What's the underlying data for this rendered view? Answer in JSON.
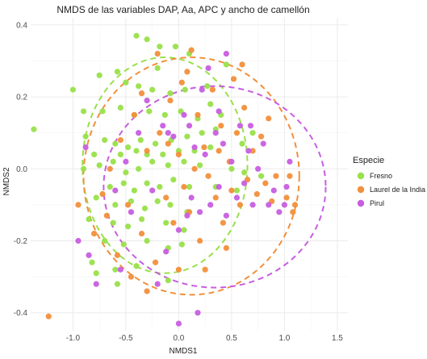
{
  "chart_data": {
    "type": "scatter",
    "title": "NMDS de las variables DAP, Aa, APC y ancho de camellón",
    "xlabel": "NMDS1",
    "ylabel": "NMDS2",
    "xlim": [
      -1.4,
      1.6
    ],
    "ylim": [
      -0.45,
      0.42
    ],
    "x_ticks": [
      -1.0,
      -0.5,
      0.0,
      0.5,
      1.0,
      1.5
    ],
    "x_tick_labels": [
      "-1.0",
      "-0.5",
      "0.0",
      "0.5",
      "1.0",
      "1.5"
    ],
    "y_ticks": [
      -0.4,
      -0.2,
      0.0,
      0.2,
      0.4
    ],
    "y_tick_labels": [
      "-0.4",
      "-0.2",
      "0.0",
      "0.2",
      "0.4"
    ],
    "grid": true,
    "legend": {
      "title": "Especie",
      "position": "right"
    },
    "series": [
      {
        "name": "Fresno",
        "color": "#99e04a",
        "ellipse": {
          "cx": -0.13,
          "cy": 0.01,
          "rx": 0.78,
          "ry": 0.3
        },
        "points": [
          [
            -1.37,
            0.11
          ],
          [
            -1.0,
            0.22
          ],
          [
            -0.75,
            0.26
          ],
          [
            -0.58,
            0.27
          ],
          [
            -0.4,
            0.37
          ],
          [
            -0.3,
            0.36
          ],
          [
            -0.18,
            0.34
          ],
          [
            -0.03,
            0.34
          ],
          [
            0.1,
            0.32
          ],
          [
            0.45,
            0.29
          ],
          [
            -0.5,
            0.24
          ],
          [
            -0.38,
            0.23
          ],
          [
            -0.25,
            0.22
          ],
          [
            -0.08,
            0.21
          ],
          [
            0.06,
            0.22
          ],
          [
            0.27,
            0.23
          ],
          [
            -0.72,
            0.16
          ],
          [
            -0.55,
            0.17
          ],
          [
            -0.42,
            0.15
          ],
          [
            -0.28,
            0.16
          ],
          [
            -0.13,
            0.15
          ],
          [
            0.02,
            0.16
          ],
          [
            0.18,
            0.14
          ],
          [
            0.4,
            0.15
          ],
          [
            -0.88,
            0.09
          ],
          [
            -0.7,
            0.08
          ],
          [
            -0.6,
            0.07
          ],
          [
            -0.48,
            0.06
          ],
          [
            -0.36,
            0.08
          ],
          [
            -0.22,
            0.07
          ],
          [
            -0.07,
            0.08
          ],
          [
            0.08,
            0.09
          ],
          [
            0.22,
            0.1
          ],
          [
            0.35,
            0.11
          ],
          [
            -0.8,
            0.04
          ],
          [
            -0.55,
            0.04
          ],
          [
            -0.4,
            0.05
          ],
          [
            -0.3,
            0.04
          ],
          [
            -0.15,
            0.04
          ],
          [
            0.0,
            0.05
          ],
          [
            0.15,
            0.05
          ],
          [
            0.3,
            0.06
          ],
          [
            -0.9,
            0.0
          ],
          [
            -0.75,
            0.01
          ],
          [
            -0.62,
            0.02
          ],
          [
            -0.5,
            -0.01
          ],
          [
            -0.38,
            0.0
          ],
          [
            -0.25,
            0.02
          ],
          [
            -0.1,
            0.01
          ],
          [
            0.05,
            0.02
          ],
          [
            0.2,
            0.01
          ],
          [
            0.5,
            0.0
          ],
          [
            0.62,
            -0.01
          ],
          [
            0.78,
            -0.02
          ],
          [
            -0.65,
            -0.05
          ],
          [
            -0.52,
            -0.04
          ],
          [
            -0.42,
            -0.06
          ],
          [
            -0.3,
            -0.04
          ],
          [
            -0.18,
            -0.05
          ],
          [
            -0.05,
            -0.03
          ],
          [
            0.1,
            -0.05
          ],
          [
            0.35,
            -0.05
          ],
          [
            -0.78,
            -0.08
          ],
          [
            -0.6,
            -0.1
          ],
          [
            -0.45,
            -0.09
          ],
          [
            -0.32,
            -0.11
          ],
          [
            -0.2,
            -0.09
          ],
          [
            -0.08,
            -0.1
          ],
          [
            0.08,
            -0.12
          ],
          [
            -0.85,
            -0.14
          ],
          [
            -0.62,
            -0.15
          ],
          [
            -0.48,
            -0.16
          ],
          [
            -0.35,
            -0.14
          ],
          [
            -0.12,
            -0.15
          ],
          [
            0.05,
            -0.17
          ],
          [
            -0.7,
            -0.2
          ],
          [
            -0.52,
            -0.21
          ],
          [
            -0.3,
            -0.2
          ],
          [
            -0.1,
            -0.22
          ],
          [
            0.03,
            -0.21
          ],
          [
            -0.82,
            -0.26
          ],
          [
            -0.6,
            -0.28
          ],
          [
            -0.4,
            -0.27
          ],
          [
            -0.78,
            -0.29
          ],
          [
            -0.58,
            -0.32
          ],
          [
            -0.1,
            -0.31
          ],
          [
            0.6,
            0.07
          ],
          [
            0.7,
            0.1
          ],
          [
            0.55,
            -0.06
          ],
          [
            -0.9,
            0.16
          ],
          [
            -0.2,
            0.28
          ],
          [
            0.3,
            0.18
          ]
        ]
      },
      {
        "name": "Laurel de la India",
        "color": "#f28f3b",
        "ellipse": {
          "cx": 0.12,
          "cy": -0.02,
          "rx": 1.02,
          "ry": 0.33
        },
        "points": [
          [
            -1.23,
            -0.41
          ],
          [
            -0.95,
            -0.1
          ],
          [
            -0.8,
            -0.18
          ],
          [
            -0.72,
            -0.07
          ],
          [
            -0.65,
            0.0
          ],
          [
            -0.55,
            0.08
          ],
          [
            -0.48,
            -0.1
          ],
          [
            -0.42,
            0.15
          ],
          [
            -0.35,
            -0.18
          ],
          [
            -0.3,
            0.05
          ],
          [
            -0.22,
            -0.26
          ],
          [
            -0.18,
            0.1
          ],
          [
            -0.12,
            -0.08
          ],
          [
            -0.08,
            0.19
          ],
          [
            -0.05,
            -0.15
          ],
          [
            0.0,
            0.04
          ],
          [
            0.03,
            0.24
          ],
          [
            0.05,
            -0.05
          ],
          [
            0.08,
            0.27
          ],
          [
            0.1,
            -0.12
          ],
          [
            0.15,
            0.0
          ],
          [
            0.18,
            0.15
          ],
          [
            0.2,
            -0.2
          ],
          [
            0.24,
            0.06
          ],
          [
            0.28,
            -0.02
          ],
          [
            0.32,
            0.22
          ],
          [
            0.35,
            -0.08
          ],
          [
            0.4,
            0.12
          ],
          [
            0.42,
            -0.15
          ],
          [
            0.48,
            0.02
          ],
          [
            0.5,
            -0.06
          ],
          [
            0.52,
            0.25
          ],
          [
            0.55,
            0.1
          ],
          [
            0.58,
            -0.1
          ],
          [
            0.62,
            0.17
          ],
          [
            0.65,
            -0.03
          ],
          [
            0.7,
            0.05
          ],
          [
            0.74,
            -0.07
          ],
          [
            0.78,
            0.09
          ],
          [
            0.82,
            -0.04
          ],
          [
            0.88,
            -0.09
          ],
          [
            0.92,
            -0.02
          ],
          [
            1.02,
            -0.08
          ],
          [
            1.05,
            -0.02
          ],
          [
            1.08,
            -0.12
          ],
          [
            -0.45,
            -0.3
          ],
          [
            -0.3,
            -0.34
          ],
          [
            -0.58,
            -0.24
          ],
          [
            -0.68,
            -0.13
          ],
          [
            0.0,
            -0.28
          ],
          [
            0.12,
            0.33
          ],
          [
            0.6,
            0.29
          ],
          [
            -0.2,
            0.32
          ],
          [
            -0.35,
            0.21
          ],
          [
            0.25,
            -0.28
          ],
          [
            0.45,
            -0.22
          ],
          [
            -0.1,
            0.07
          ],
          [
            0.38,
            0.05
          ],
          [
            0.85,
            0.14
          ],
          [
            1.1,
            -0.1
          ]
        ]
      },
      {
        "name": "Pirul",
        "color": "#c75ee0",
        "ellipse": {
          "cx": 0.34,
          "cy": -0.05,
          "rx": 1.05,
          "ry": 0.28
        },
        "points": [
          [
            -0.95,
            -0.2
          ],
          [
            -0.88,
            0.06
          ],
          [
            -0.85,
            -0.24
          ],
          [
            -0.78,
            -0.32
          ],
          [
            -0.6,
            -0.06
          ],
          [
            -0.5,
            0.02
          ],
          [
            -0.45,
            -0.12
          ],
          [
            -0.38,
            0.1
          ],
          [
            -0.25,
            -0.06
          ],
          [
            -0.15,
            0.12
          ],
          [
            -0.1,
            0.1
          ],
          [
            -0.05,
            0.09
          ],
          [
            0.0,
            -0.17
          ],
          [
            0.05,
            0.15
          ],
          [
            0.08,
            -0.13
          ],
          [
            0.1,
            0.12
          ],
          [
            0.12,
            -0.08
          ],
          [
            0.15,
            0.06
          ],
          [
            0.2,
            -0.12
          ],
          [
            0.25,
            0.04
          ],
          [
            0.3,
            -0.1
          ],
          [
            0.35,
            0.1
          ],
          [
            0.38,
            -0.05
          ],
          [
            0.42,
            0.07
          ],
          [
            0.45,
            -0.13
          ],
          [
            0.5,
            0.02
          ],
          [
            0.55,
            -0.08
          ],
          [
            0.58,
            0.12
          ],
          [
            0.62,
            -0.04
          ],
          [
            0.66,
            0.05
          ],
          [
            0.7,
            -0.1
          ],
          [
            0.75,
            0.0
          ],
          [
            0.8,
            0.07
          ],
          [
            0.85,
            -0.1
          ],
          [
            0.9,
            -0.06
          ],
          [
            0.95,
            -0.12
          ],
          [
            1.0,
            -0.1
          ],
          [
            1.02,
            -0.05
          ],
          [
            1.05,
            0.02
          ],
          [
            0.45,
            0.32
          ],
          [
            0.28,
            0.28
          ],
          [
            -0.2,
            -0.32
          ],
          [
            0.0,
            -0.43
          ],
          [
            0.18,
            -0.4
          ],
          [
            -0.55,
            -0.28
          ],
          [
            -0.3,
            0.19
          ],
          [
            0.68,
            0.12
          ],
          [
            0.38,
            0.16
          ],
          [
            -0.12,
            -0.23
          ],
          [
            0.22,
            0.22
          ]
        ]
      }
    ]
  }
}
